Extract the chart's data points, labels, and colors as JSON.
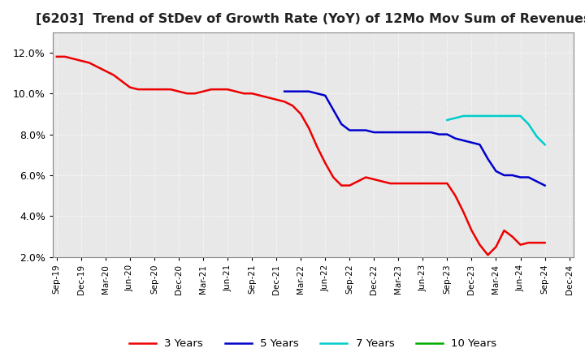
{
  "title": "[6203]  Trend of StDev of Growth Rate (YoY) of 12Mo Mov Sum of Revenues",
  "title_fontsize": 11.5,
  "background_color": "#ffffff",
  "plot_bg_color": "#e8e8e8",
  "grid_color": "#ffffff",
  "ylim": [
    0.02,
    0.13
  ],
  "yticks": [
    0.02,
    0.04,
    0.06,
    0.08,
    0.1,
    0.12
  ],
  "series": {
    "3 Years": {
      "color": "#ee0000",
      "linewidth": 1.8,
      "y": [
        0.118,
        0.118,
        0.117,
        0.116,
        0.115,
        0.113,
        0.111,
        0.109,
        0.106,
        0.103,
        0.102,
        0.102,
        0.102,
        0.102,
        0.102,
        0.101,
        0.1,
        0.1,
        0.101,
        0.102,
        0.102,
        0.102,
        0.101,
        0.1,
        0.1,
        0.099,
        0.098,
        0.097,
        0.096,
        0.094,
        0.09,
        0.083,
        0.074,
        0.066,
        0.059,
        0.055,
        0.055,
        0.057,
        0.059,
        0.058,
        0.057,
        0.056,
        0.056,
        0.056,
        0.056,
        0.056,
        0.056,
        0.056,
        0.056,
        0.05,
        0.042,
        0.033,
        0.026,
        0.021,
        0.025,
        0.033,
        0.03,
        0.026,
        0.027,
        0.027,
        0.027,
        null,
        null,
        null
      ]
    },
    "5 Years": {
      "color": "#0000cc",
      "linewidth": 1.8,
      "y": [
        null,
        null,
        null,
        null,
        null,
        null,
        null,
        null,
        null,
        null,
        null,
        null,
        null,
        null,
        null,
        null,
        null,
        null,
        null,
        null,
        null,
        null,
        null,
        null,
        null,
        null,
        null,
        null,
        0.101,
        0.101,
        0.101,
        0.101,
        0.1,
        0.099,
        0.092,
        0.085,
        0.082,
        0.082,
        0.082,
        0.081,
        0.081,
        0.081,
        0.081,
        0.081,
        0.081,
        0.081,
        0.081,
        0.08,
        0.08,
        0.078,
        0.077,
        0.076,
        0.075,
        0.068,
        0.062,
        0.06,
        0.06,
        0.059,
        0.059,
        0.057,
        0.055,
        null,
        null,
        null
      ]
    },
    "7 Years": {
      "color": "#00cccc",
      "linewidth": 1.8,
      "y": [
        null,
        null,
        null,
        null,
        null,
        null,
        null,
        null,
        null,
        null,
        null,
        null,
        null,
        null,
        null,
        null,
        null,
        null,
        null,
        null,
        null,
        null,
        null,
        null,
        null,
        null,
        null,
        null,
        null,
        null,
        null,
        null,
        null,
        null,
        null,
        null,
        null,
        null,
        null,
        null,
        null,
        null,
        null,
        null,
        null,
        null,
        null,
        null,
        0.087,
        0.088,
        0.089,
        0.089,
        0.089,
        0.089,
        0.089,
        0.089,
        0.089,
        0.089,
        0.085,
        0.079,
        0.075,
        null,
        null,
        null
      ]
    },
    "10 Years": {
      "color": "#00aa00",
      "linewidth": 1.8,
      "y": [
        null,
        null,
        null,
        null,
        null,
        null,
        null,
        null,
        null,
        null,
        null,
        null,
        null,
        null,
        null,
        null,
        null,
        null,
        null,
        null,
        null,
        null,
        null,
        null,
        null,
        null,
        null,
        null,
        null,
        null,
        null,
        null,
        null,
        null,
        null,
        null,
        null,
        null,
        null,
        null,
        null,
        null,
        null,
        null,
        null,
        null,
        null,
        null,
        null,
        null,
        null,
        null,
        null,
        null,
        null,
        null,
        null,
        null,
        null,
        null,
        null,
        null,
        null,
        null
      ]
    }
  },
  "n_points": 64,
  "xtick_labels": [
    "Sep-19",
    "Dec-19",
    "Mar-20",
    "Jun-20",
    "Sep-20",
    "Dec-20",
    "Mar-21",
    "Jun-21",
    "Sep-21",
    "Dec-21",
    "Mar-22",
    "Jun-22",
    "Sep-22",
    "Dec-22",
    "Mar-23",
    "Jun-23",
    "Sep-23",
    "Dec-23",
    "Mar-24",
    "Jun-24",
    "Sep-24",
    "Dec-24"
  ],
  "xtick_indices": [
    0,
    3,
    6,
    9,
    12,
    15,
    18,
    21,
    24,
    27,
    30,
    33,
    36,
    39,
    42,
    45,
    48,
    51,
    54,
    57,
    60,
    63
  ],
  "legend_ncol": 4
}
